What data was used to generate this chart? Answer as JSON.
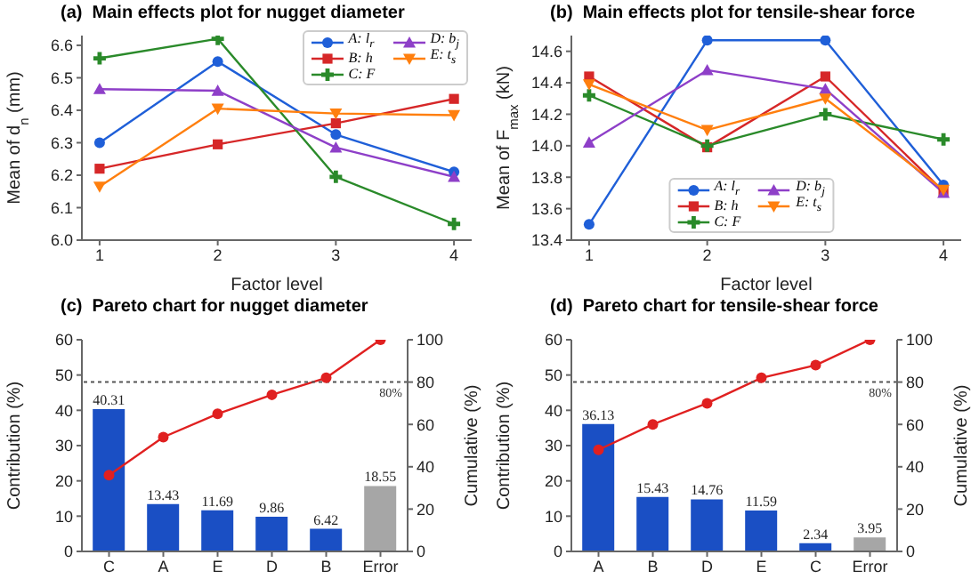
{
  "chart_data": [
    {
      "type": "line",
      "title": "(a)  Main effects plot for nugget diameter",
      "xlabel": "Factor level",
      "ylabel": "Mean of d$_{n}$ (mm)",
      "x": [
        1,
        2,
        3,
        4
      ],
      "xlim": [
        0.85,
        4.15
      ],
      "xticks": [
        1,
        2,
        3,
        4
      ],
      "ylim": [
        6.0,
        6.63
      ],
      "yticks": [
        {
          "value": 6,
          "label": "6.0"
        },
        6.1,
        6.2,
        6.3,
        6.4,
        6.5,
        6.6
      ],
      "legend": "top right",
      "series": [
        {
          "name": "A: l$_{r}$",
          "color": "#1f5fd8",
          "marker": "circle",
          "values": [
            6.3,
            6.55,
            6.325,
            6.21
          ]
        },
        {
          "name": "B: h",
          "color": "#d62728",
          "marker": "square",
          "values": [
            6.22,
            6.295,
            6.36,
            6.435
          ]
        },
        {
          "name": "C: F",
          "color": "#2a8a2a",
          "marker": "cross",
          "values": [
            6.56,
            6.62,
            6.195,
            6.05
          ]
        },
        {
          "name": "D: b$_{j}$",
          "color": "#8e3fc8",
          "marker": "triangle",
          "values": [
            6.465,
            6.46,
            6.285,
            6.195
          ]
        },
        {
          "name": "E: t$_{s}$",
          "color": "#ff7f0e",
          "marker": "triangle-down",
          "values": [
            6.165,
            6.405,
            6.39,
            6.385
          ]
        }
      ]
    },
    {
      "type": "line",
      "title": "(b)  Main effects plot for tensile-shear force",
      "xlabel": "Factor level",
      "ylabel": "Mean of F$_{max}$ (kN)",
      "x": [
        1,
        2,
        3,
        4
      ],
      "xlim": [
        0.85,
        4.15
      ],
      "xticks": [
        1,
        2,
        3,
        4
      ],
      "ylim": [
        13.4,
        14.7
      ],
      "yticks": [
        13.4,
        13.6,
        13.8,
        {
          "value": 14,
          "label": "14.0"
        },
        14.2,
        14.4,
        14.6
      ],
      "legend": "bottom",
      "series": [
        {
          "name": "A: l$_{r}$",
          "color": "#1f5fd8",
          "marker": "circle",
          "values": [
            13.5,
            14.67,
            14.67,
            13.75
          ]
        },
        {
          "name": "B: h",
          "color": "#d62728",
          "marker": "square",
          "values": [
            14.44,
            13.99,
            14.44,
            13.71
          ]
        },
        {
          "name": "C: F",
          "color": "#2a8a2a",
          "marker": "cross",
          "values": [
            14.32,
            14.0,
            14.2,
            14.04
          ]
        },
        {
          "name": "D: b$_{j}$",
          "color": "#8e3fc8",
          "marker": "triangle",
          "values": [
            14.02,
            14.48,
            14.36,
            13.7
          ]
        },
        {
          "name": "E: t$_{s}$",
          "color": "#ff7f0e",
          "marker": "triangle-down",
          "values": [
            14.39,
            14.1,
            14.3,
            13.72
          ]
        }
      ]
    },
    {
      "type": "bar",
      "title": "(c)  Pareto chart for nugget diameter",
      "ylabel": "Contribution (%)",
      "y2label": "Cumulative (%)",
      "categories": [
        "C",
        "A",
        "E",
        "D",
        "B",
        "Error"
      ],
      "ylim": [
        0,
        60
      ],
      "yticks": [
        0,
        10,
        20,
        30,
        40,
        50,
        60
      ],
      "y2lim": [
        0,
        100
      ],
      "y2ticks": [
        0,
        20,
        40,
        60,
        80,
        100
      ],
      "ref_lines": [
        {
          "axis": "y2",
          "value": 80,
          "label": "80%",
          "color": "#555555",
          "line_style": "dotted"
        }
      ],
      "series": [
        {
          "type": "bar",
          "colors": [
            "#1a4fc4",
            "#1a4fc4",
            "#1a4fc4",
            "#1a4fc4",
            "#1a4fc4",
            "#a6a6a6"
          ],
          "values": [
            40.31,
            13.43,
            11.69,
            9.86,
            6.42,
            18.55
          ],
          "value_labels": [
            "40.31",
            "13.43",
            "11.69",
            "9.86",
            "6.42",
            "18.55"
          ]
        },
        {
          "type": "line",
          "axis": "y2",
          "color": "#e02020",
          "marker": "circle",
          "values": [
            36,
            54,
            65,
            74,
            82,
            100
          ]
        }
      ]
    },
    {
      "type": "bar",
      "title": "(d)  Pareto chart for tensile-shear force",
      "ylabel": "Contribution (%)",
      "y2label": "Cumulative (%)",
      "categories": [
        "A",
        "B",
        "D",
        "E",
        "C",
        "Error"
      ],
      "ylim": [
        0,
        60
      ],
      "yticks": [
        0,
        10,
        20,
        30,
        40,
        50,
        60
      ],
      "y2lim": [
        0,
        100
      ],
      "y2ticks": [
        0,
        20,
        40,
        60,
        80,
        100
      ],
      "ref_lines": [
        {
          "axis": "y2",
          "value": 80,
          "label": "80%",
          "color": "#555555",
          "line_style": "dotted"
        }
      ],
      "series": [
        {
          "type": "bar",
          "colors": [
            "#1a4fc4",
            "#1a4fc4",
            "#1a4fc4",
            "#1a4fc4",
            "#1a4fc4",
            "#a6a6a6"
          ],
          "values": [
            36.13,
            15.43,
            14.76,
            11.59,
            2.34,
            3.95
          ],
          "value_labels": [
            "36.13",
            "15.43",
            "14.76",
            "11.59",
            "2.34",
            "3.95"
          ]
        },
        {
          "type": "line",
          "axis": "y2",
          "color": "#e02020",
          "marker": "circle",
          "values": [
            48,
            60,
            70,
            82,
            88,
            100
          ]
        }
      ]
    }
  ]
}
